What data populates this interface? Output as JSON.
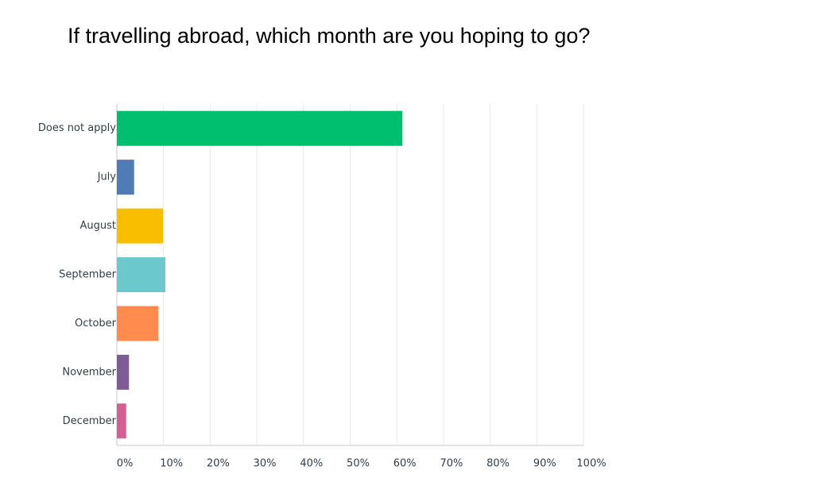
{
  "chart_data": {
    "type": "bar",
    "orientation": "horizontal",
    "title": "If travelling abroad, which month are you hoping to go?",
    "categories": [
      "Does not apply",
      "July",
      "August",
      "September",
      "October",
      "November",
      "December"
    ],
    "values": [
      61.2,
      3.7,
      9.9,
      10.4,
      8.9,
      2.6,
      2.0
    ],
    "colors": [
      "#00bf6f",
      "#507cb6",
      "#f9be00",
      "#6bc8cd",
      "#ff8b4f",
      "#7d5c97",
      "#d25f90"
    ],
    "xlim": [
      0,
      100
    ],
    "xticks": [
      {
        "value": 0,
        "label": "0%"
      },
      {
        "value": 10,
        "label": "10%"
      },
      {
        "value": 20,
        "label": "20%"
      },
      {
        "value": 30,
        "label": "30%"
      },
      {
        "value": 40,
        "label": "40%"
      },
      {
        "value": 50,
        "label": "50%"
      },
      {
        "value": 60,
        "label": "60%"
      },
      {
        "value": 70,
        "label": "70%"
      },
      {
        "value": 80,
        "label": "80%"
      },
      {
        "value": 90,
        "label": "90%"
      },
      {
        "value": 100,
        "label": "100%"
      }
    ],
    "grid": true
  }
}
